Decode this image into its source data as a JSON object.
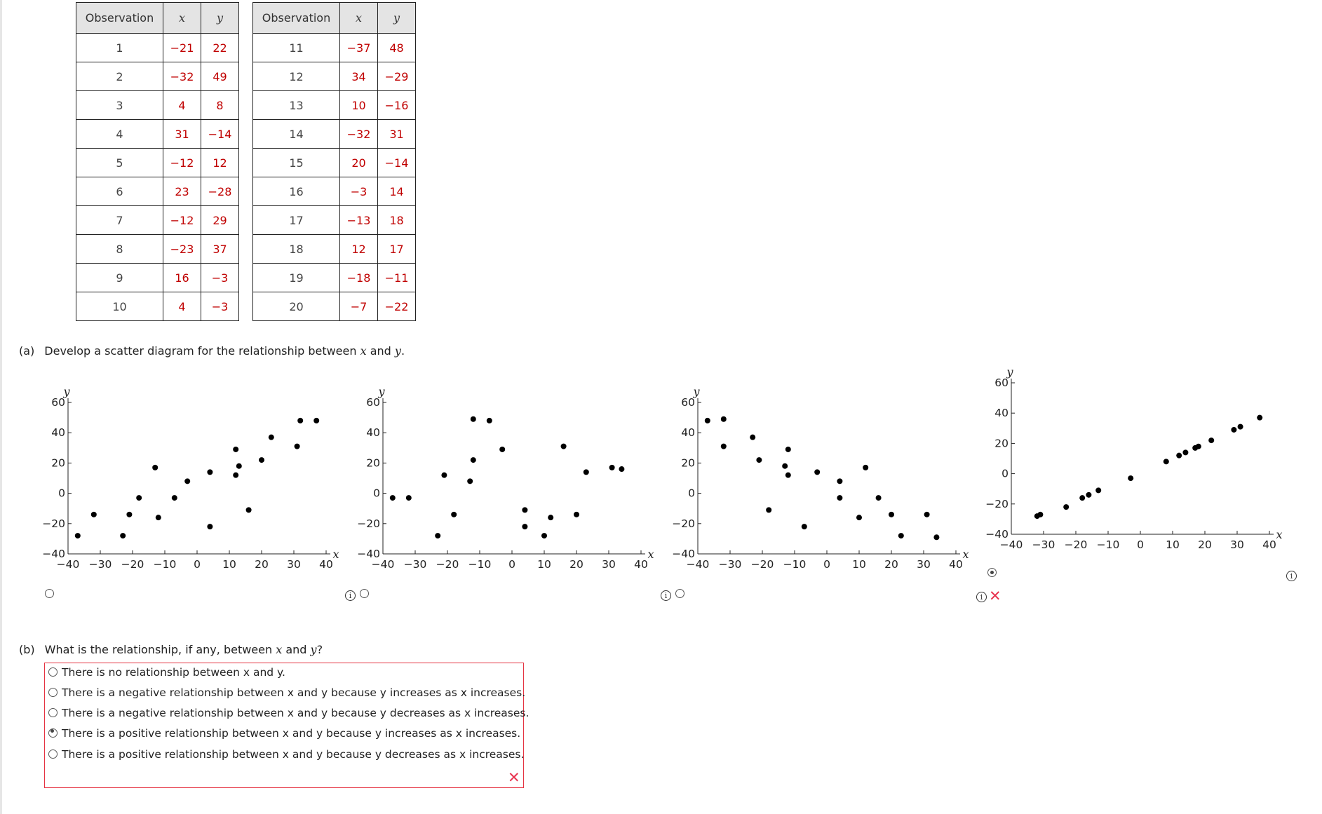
{
  "table_headers": {
    "observation": "Observation",
    "x": "x",
    "y": "y"
  },
  "tables": [
    {
      "rows": [
        {
          "obs": "1",
          "x": "−21",
          "y": "22"
        },
        {
          "obs": "2",
          "x": "−32",
          "y": "49"
        },
        {
          "obs": "3",
          "x": "4",
          "y": "8"
        },
        {
          "obs": "4",
          "x": "31",
          "y": "−14"
        },
        {
          "obs": "5",
          "x": "−12",
          "y": "12"
        },
        {
          "obs": "6",
          "x": "23",
          "y": "−28"
        },
        {
          "obs": "7",
          "x": "−12",
          "y": "29"
        },
        {
          "obs": "8",
          "x": "−23",
          "y": "37"
        },
        {
          "obs": "9",
          "x": "16",
          "y": "−3"
        },
        {
          "obs": "10",
          "x": "4",
          "y": "−3"
        }
      ]
    },
    {
      "rows": [
        {
          "obs": "11",
          "x": "−37",
          "y": "48"
        },
        {
          "obs": "12",
          "x": "34",
          "y": "−29"
        },
        {
          "obs": "13",
          "x": "10",
          "y": "−16"
        },
        {
          "obs": "14",
          "x": "−32",
          "y": "31"
        },
        {
          "obs": "15",
          "x": "20",
          "y": "−14"
        },
        {
          "obs": "16",
          "x": "−3",
          "y": "14"
        },
        {
          "obs": "17",
          "x": "−13",
          "y": "18"
        },
        {
          "obs": "18",
          "x": "12",
          "y": "17"
        },
        {
          "obs": "19",
          "x": "−18",
          "y": "−11"
        },
        {
          "obs": "20",
          "x": "−7",
          "y": "−22"
        }
      ]
    }
  ],
  "part_a": {
    "label": "(a)",
    "text_before": "Develop a scatter diagram for the relationship between ",
    "var_x": "x",
    "text_mid": " and ",
    "var_y": "y",
    "text_end": "."
  },
  "part_b": {
    "label": "(b)",
    "text_before": "What is the relationship, if any, between ",
    "var_x": "x",
    "text_mid": " and ",
    "var_y": "y",
    "text_end": "?"
  },
  "options_b": [
    {
      "label": "There is no relationship between x and y.",
      "selected": false
    },
    {
      "label": "There is a negative relationship between x and y because y increases as x increases.",
      "selected": false
    },
    {
      "label": "There is a negative relationship between x and y because y decreases as x increases.",
      "selected": false
    },
    {
      "label": "There is a positive relationship between x and y because y increases as x increases.",
      "selected": true
    },
    {
      "label": "There is a positive relationship between x and y because y decreases as x increases.",
      "selected": false
    }
  ],
  "part_a_selected_option": 4,
  "icons": {
    "info": "info-icon",
    "incorrect": "incorrect-x-icon",
    "radio": "radio-icon"
  },
  "colors": {
    "values_red": "#c00000",
    "error_red": "#e53342",
    "x_mark": "#e8334f"
  },
  "chart_data": [
    {
      "type": "scatter",
      "xlabel": "x",
      "ylabel": "y",
      "xlim": [
        -40,
        40
      ],
      "ylim": [
        -40,
        60
      ],
      "xticks": [
        "−40",
        "−30",
        "−20",
        "−10",
        "0",
        "10",
        "20",
        "30",
        "40"
      ],
      "yticks": [
        "60",
        "40",
        "20",
        "0",
        "−20",
        "−40"
      ],
      "points": [
        [
          -37,
          -28
        ],
        [
          -32,
          -14
        ],
        [
          -23,
          -28
        ],
        [
          -21,
          -14
        ],
        [
          -18,
          -3
        ],
        [
          -13,
          17
        ],
        [
          -12,
          -16
        ],
        [
          -7,
          -3
        ],
        [
          -3,
          8
        ],
        [
          4,
          14
        ],
        [
          4,
          -22
        ],
        [
          12,
          29
        ],
        [
          12,
          12
        ],
        [
          13,
          18
        ],
        [
          16,
          -11
        ],
        [
          20,
          22
        ],
        [
          23,
          37
        ],
        [
          32,
          48
        ],
        [
          31,
          31
        ],
        [
          37,
          48
        ]
      ]
    },
    {
      "type": "scatter",
      "xlabel": "x",
      "ylabel": "y",
      "xlim": [
        -40,
        40
      ],
      "ylim": [
        -40,
        60
      ],
      "xticks": [
        "−40",
        "−30",
        "−20",
        "−10",
        "0",
        "10",
        "20",
        "30",
        "40"
      ],
      "yticks": [
        "60",
        "40",
        "20",
        "0",
        "−20",
        "−40"
      ],
      "points": [
        [
          -37,
          -3
        ],
        [
          -32,
          -3
        ],
        [
          -23,
          -28
        ],
        [
          -21,
          12
        ],
        [
          -18,
          -14
        ],
        [
          -13,
          8
        ],
        [
          -12,
          22
        ],
        [
          -12,
          49
        ],
        [
          -7,
          48
        ],
        [
          -3,
          29
        ],
        [
          4,
          -11
        ],
        [
          4,
          -22
        ],
        [
          10,
          -28
        ],
        [
          12,
          -16
        ],
        [
          16,
          31
        ],
        [
          20,
          -14
        ],
        [
          23,
          14
        ],
        [
          31,
          17
        ],
        [
          34,
          16
        ]
      ]
    },
    {
      "type": "scatter",
      "xlabel": "x",
      "ylabel": "y",
      "xlim": [
        -40,
        40
      ],
      "ylim": [
        -40,
        60
      ],
      "xticks": [
        "−40",
        "−30",
        "−20",
        "−10",
        "0",
        "10",
        "20",
        "30",
        "40"
      ],
      "yticks": [
        "60",
        "40",
        "20",
        "0",
        "−20",
        "−40"
      ],
      "points": [
        [
          -37,
          48
        ],
        [
          -32,
          49
        ],
        [
          -32,
          31
        ],
        [
          -23,
          37
        ],
        [
          -21,
          22
        ],
        [
          -18,
          -11
        ],
        [
          -13,
          18
        ],
        [
          -12,
          12
        ],
        [
          -12,
          29
        ],
        [
          -7,
          -22
        ],
        [
          -3,
          14
        ],
        [
          4,
          8
        ],
        [
          4,
          -3
        ],
        [
          10,
          -16
        ],
        [
          12,
          17
        ],
        [
          16,
          -3
        ],
        [
          20,
          -14
        ],
        [
          23,
          -28
        ],
        [
          31,
          -14
        ],
        [
          34,
          -29
        ]
      ]
    },
    {
      "type": "scatter",
      "xlabel": "x",
      "ylabel": "y",
      "xlim": [
        -40,
        40
      ],
      "ylim": [
        -40,
        60
      ],
      "xticks": [
        "−40",
        "−30",
        "−20",
        "−10",
        "0",
        "10",
        "20",
        "30",
        "40"
      ],
      "yticks": [
        "60",
        "40",
        "20",
        "0",
        "−20",
        "−40"
      ],
      "points": [
        [
          -32,
          -28
        ],
        [
          -31,
          -27
        ],
        [
          -23,
          -22
        ],
        [
          -18,
          -16
        ],
        [
          -16,
          -14
        ],
        [
          -13,
          -11
        ],
        [
          -3,
          -3
        ],
        [
          8,
          8
        ],
        [
          12,
          12
        ],
        [
          14,
          14
        ],
        [
          17,
          17
        ],
        [
          18,
          18
        ],
        [
          22,
          22
        ],
        [
          29,
          29
        ],
        [
          31,
          31
        ],
        [
          37,
          37
        ]
      ]
    }
  ]
}
